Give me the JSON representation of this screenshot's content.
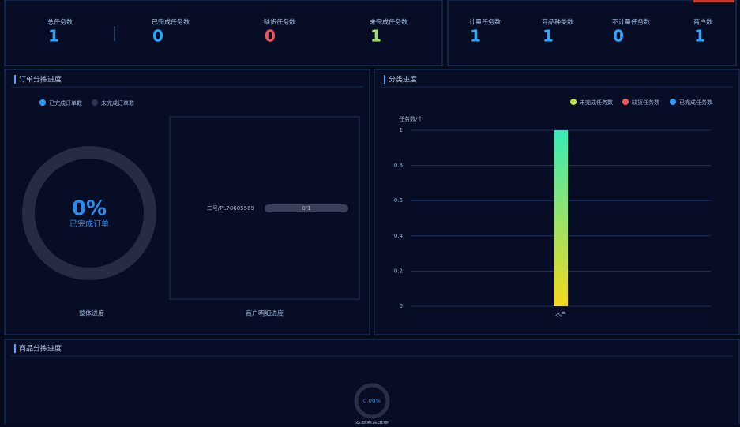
{
  "stats_left": [
    {
      "label": "总任务数",
      "value": 1,
      "color": "#2aa7ff"
    },
    {
      "label": "已完成任务数",
      "value": 0,
      "color": "#2aa7ff"
    },
    {
      "label": "缺货任务数",
      "value": 0,
      "color": "#f0555a"
    },
    {
      "label": "未完成任务数",
      "value": 1,
      "color": "#9be15d"
    }
  ],
  "stats_right": [
    {
      "label": "计量任务数",
      "value": 1,
      "color": "#2aa7ff"
    },
    {
      "label": "商品种类数",
      "value": 1,
      "color": "#2aa7ff"
    },
    {
      "label": "不计量任务数",
      "value": 0,
      "color": "#2aa7ff"
    },
    {
      "label": "商户数",
      "value": 1,
      "color": "#2aa7ff"
    }
  ],
  "order_panel": {
    "title": "订单分拣进度",
    "legend": [
      {
        "name": "已完成订单数",
        "color": "#2a9bff"
      },
      {
        "name": "未完成订单数",
        "color": "#2e3350"
      }
    ],
    "donut": {
      "value": 0,
      "value_label": "0%",
      "caption": "已完成订单"
    },
    "donut_caption": "整体进度",
    "merchant_rows": [
      {
        "name": "二号/PL78605569",
        "progress": "0/1",
        "done": 0,
        "total": 1
      }
    ],
    "merchant_caption": "商户明细进度"
  },
  "category_panel": {
    "title": "分类进度",
    "chart": {
      "type": "bar",
      "y_label": "任务数/个",
      "categories": [
        "水产"
      ],
      "series": [
        {
          "name": "未完成任务数",
          "color": "#b8e04a",
          "values": [
            1
          ]
        },
        {
          "name": "缺货任务数",
          "color": "#f05a5a",
          "values": [
            0
          ]
        },
        {
          "name": "已完成任务数",
          "color": "#2a9bff",
          "values": [
            0
          ]
        }
      ],
      "ylim": [
        0,
        1
      ],
      "yticks": [
        0,
        0.2,
        0.4,
        0.6,
        0.8,
        1
      ],
      "grid": true
    }
  },
  "goods_panel": {
    "title": "商品分拣进度",
    "donut": {
      "value": 0,
      "value_label": "0.00%"
    },
    "caption": "全部商品进度"
  }
}
